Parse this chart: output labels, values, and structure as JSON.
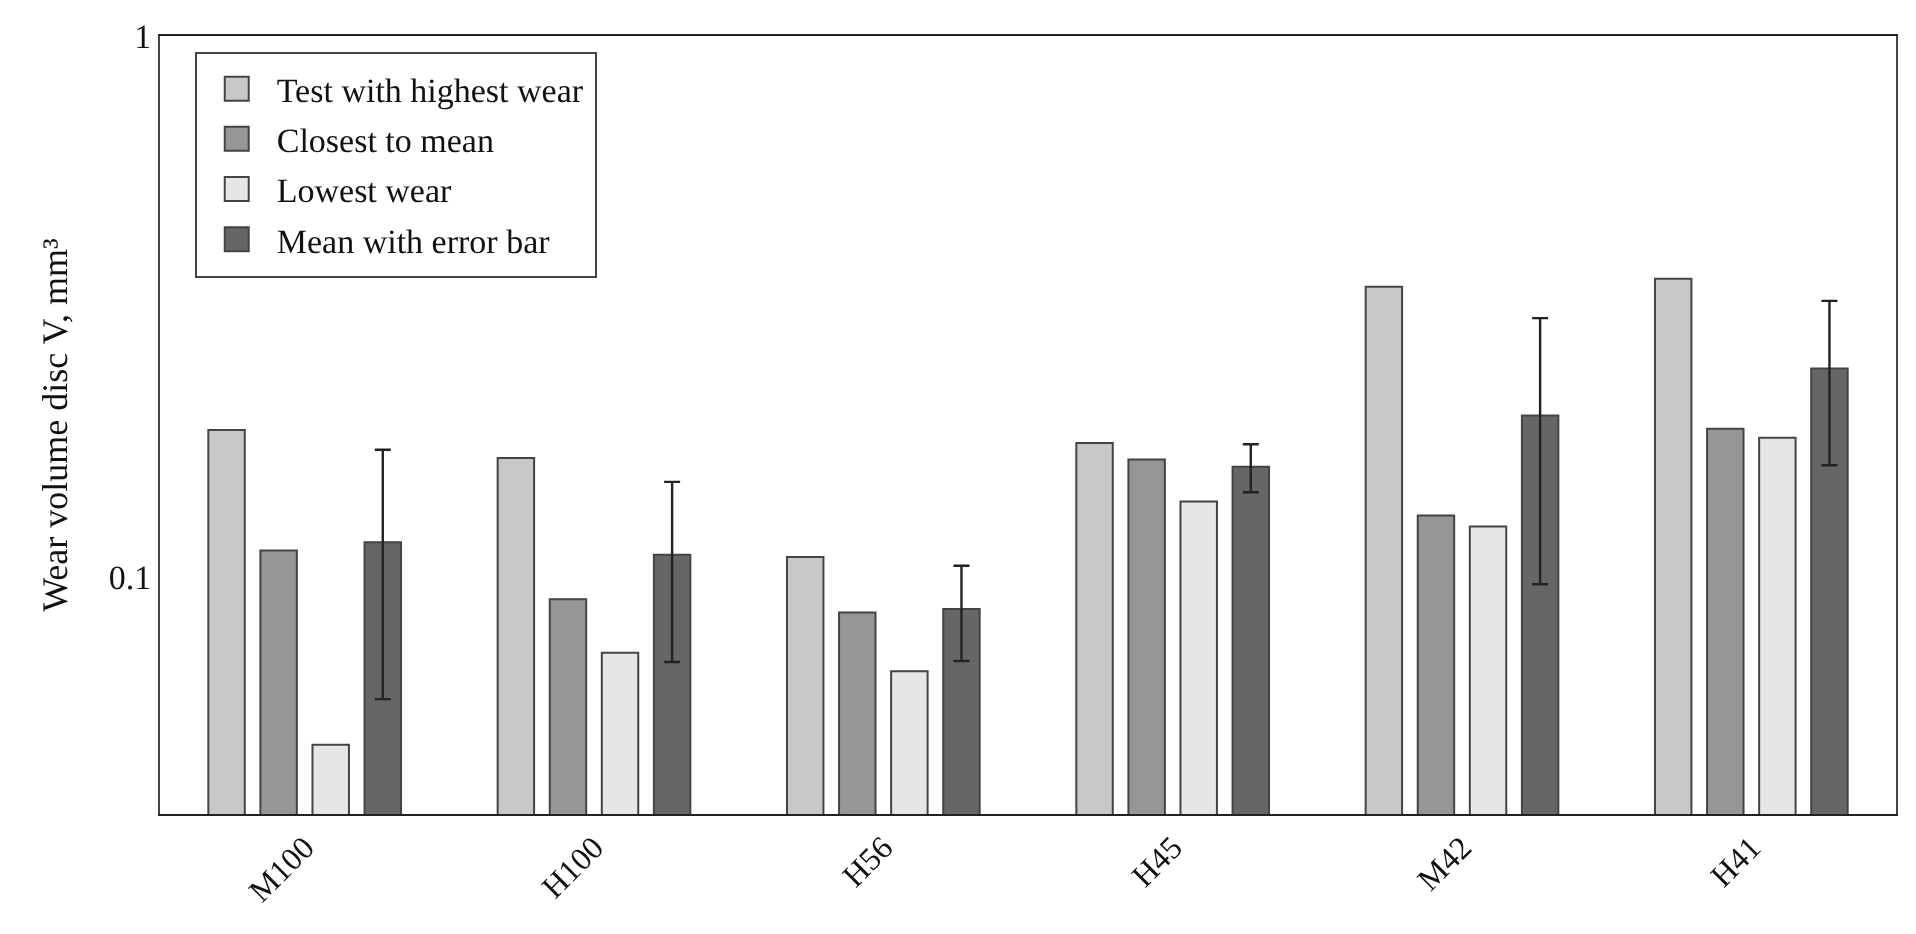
{
  "chart_data": {
    "type": "bar",
    "ylabel": "Wear volume disc V, mm³",
    "log": true,
    "ylim": [
      0.0365,
      1
    ],
    "yticks": [
      0.1,
      1
    ],
    "legend": "top left",
    "categories": [
      "M100",
      "H100",
      "H56",
      "H45",
      "M42",
      "H41"
    ],
    "series": [
      {
        "name": "Test with highest wear",
        "color": "#c8c8c8",
        "values": [
          0.187,
          0.166,
          0.109,
          0.177,
          0.344,
          0.356
        ]
      },
      {
        "name": "Closest to mean",
        "color": "#969696",
        "values": [
          0.112,
          0.091,
          0.086,
          0.165,
          0.13,
          0.188
        ]
      },
      {
        "name": "Lowest wear",
        "color": "#e6e6e6",
        "values": [
          0.049,
          0.0725,
          0.067,
          0.138,
          0.124,
          0.181
        ]
      },
      {
        "name": "Mean with error bar",
        "color": "#666666",
        "values": [
          0.116,
          0.11,
          0.0873,
          0.16,
          0.199,
          0.243
        ],
        "errors": [
          [
            0.0595,
            0.172
          ],
          [
            0.0697,
            0.15
          ],
          [
            0.07,
            0.105
          ],
          [
            0.1435,
            0.176
          ],
          [
            0.097,
            0.301
          ],
          [
            0.161,
            0.324
          ]
        ]
      }
    ]
  }
}
